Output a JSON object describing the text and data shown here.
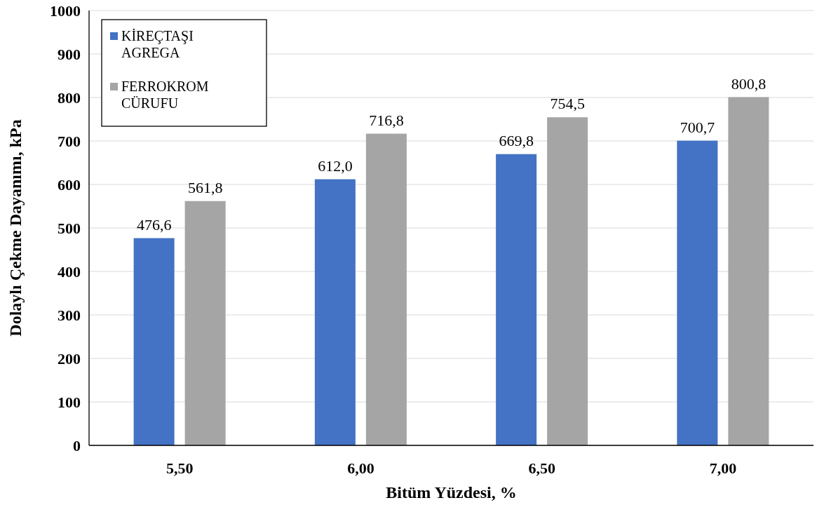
{
  "chart_data": {
    "type": "bar",
    "xlabel": "Bitüm Yüzdesi, %",
    "ylabel": "Dolaylı Çekme Dayanımı, kPa",
    "categories": [
      "5,50",
      "6,00",
      "6,50",
      "7,00"
    ],
    "series": [
      {
        "name": "KİREÇTAŞI AGREGA",
        "color": "#4472c4",
        "values": [
          476.6,
          612.0,
          669.8,
          700.7
        ],
        "value_labels": [
          "476,6",
          "612,0",
          "669,8",
          "700,7"
        ]
      },
      {
        "name": "FERROKROM CÜRUFU",
        "color": "#a5a5a5",
        "values": [
          561.8,
          716.8,
          754.5,
          800.8
        ],
        "value_labels": [
          "561,8",
          "716,8",
          "754,5",
          "800,8"
        ]
      }
    ],
    "ylim": [
      0,
      1000
    ],
    "yticks": [
      0,
      100,
      200,
      300,
      400,
      500,
      600,
      700,
      800,
      900,
      1000
    ],
    "grid": "y",
    "legend": "top left"
  }
}
